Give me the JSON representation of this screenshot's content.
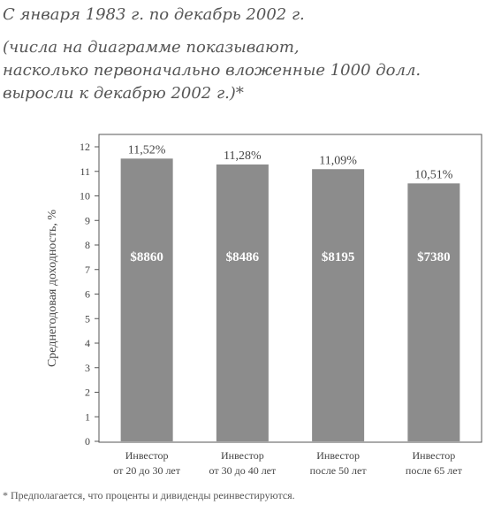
{
  "header": {
    "subtitle": "С января 1983 г. по декабрь 2002 г.",
    "note_lines": [
      "(числа на диаграмме показывают,",
      "насколько первоначально вложенные 1000 долл.",
      "выросли к декабрю 2002 г.)*"
    ]
  },
  "chart_data": {
    "type": "bar",
    "title": "",
    "ylabel": "Среднегодовая доходность, %",
    "xlabel": "",
    "ylim": [
      0,
      12
    ],
    "yticks": [
      "0",
      "1",
      "2",
      "3",
      "4",
      "5",
      "6",
      "7",
      "8",
      "9",
      "10",
      "11",
      "12"
    ],
    "categories": [
      [
        "Инвестор",
        "от 20 до 30 лет"
      ],
      [
        "Инвестор",
        "от 30 до 40 лет"
      ],
      [
        "Инвестор",
        "после 50 лет"
      ],
      [
        "Инвестор",
        "после 65 лет"
      ]
    ],
    "values": [
      11.52,
      11.28,
      11.09,
      10.51
    ],
    "value_labels": [
      "11,52%",
      "11,28%",
      "11,09%",
      "10,51%"
    ],
    "inner_labels": [
      "$8860",
      "$8486",
      "$8195",
      "$7380"
    ],
    "colors": {
      "bar": "#8c8c8c",
      "inner_label": "#ffffff",
      "axis": "#555555"
    },
    "grid": false
  },
  "footnote": "* Предполагается, что проценты и дивиденды реинвестируются."
}
